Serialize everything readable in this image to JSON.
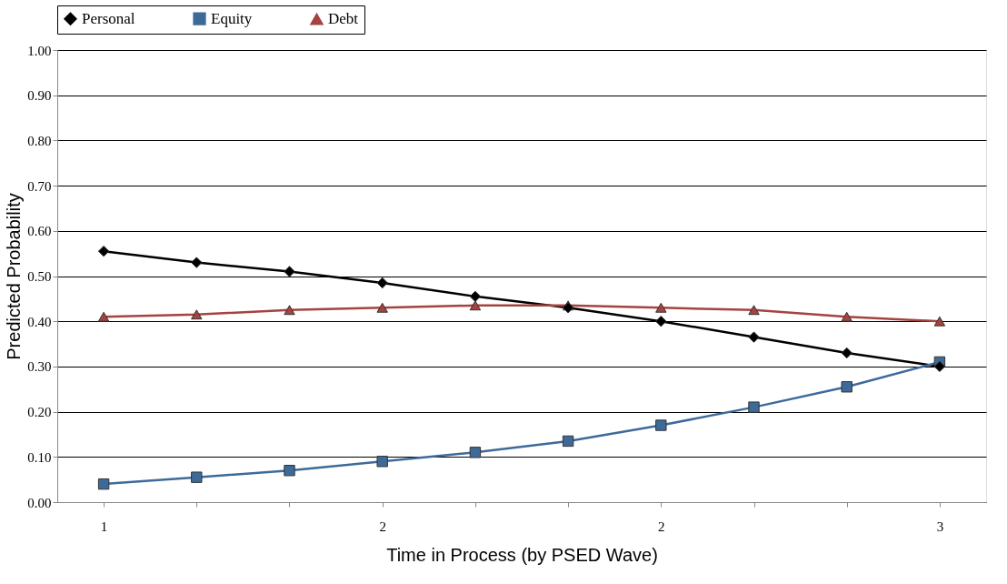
{
  "chart_data": {
    "type": "line",
    "xlabel": "Time in Process (by PSED Wave)",
    "ylabel": "Predicted Probability",
    "categories": [
      "1",
      null,
      null,
      "2",
      null,
      null,
      "2",
      null,
      null,
      "3"
    ],
    "series": [
      {
        "name": "Personal",
        "color": "#000000",
        "marker": "diamond",
        "values": [
          0.555,
          0.53,
          0.51,
          0.485,
          0.455,
          0.43,
          0.4,
          0.365,
          0.33,
          0.3
        ]
      },
      {
        "name": "Equity",
        "color": "#3e6a9a",
        "marker": "square",
        "values": [
          0.04,
          0.055,
          0.07,
          0.09,
          0.11,
          0.135,
          0.17,
          0.21,
          0.255,
          0.31
        ]
      },
      {
        "name": "Debt",
        "color": "#a54340",
        "marker": "triangle",
        "values": [
          0.41,
          0.415,
          0.425,
          0.43,
          0.435,
          0.435,
          0.43,
          0.425,
          0.41,
          0.4
        ]
      }
    ],
    "ylim": [
      0,
      1
    ],
    "yticks": [
      {
        "value": 0,
        "label": "0.00"
      },
      {
        "value": 0.1,
        "label": "0.10"
      },
      {
        "value": 0.2,
        "label": "0.20"
      },
      {
        "value": 0.3,
        "label": "0.30"
      },
      {
        "value": 0.4,
        "label": "0.40"
      },
      {
        "value": 0.5,
        "label": "0.50"
      },
      {
        "value": 0.6,
        "label": "0.60"
      },
      {
        "value": 0.7,
        "label": "0.70"
      },
      {
        "value": 0.8,
        "label": "0.80"
      },
      {
        "value": 0.9,
        "label": "0.90"
      },
      {
        "value": 1,
        "label": "1.00"
      }
    ],
    "grid": "y",
    "legend": "top",
    "line_style": "solid"
  }
}
